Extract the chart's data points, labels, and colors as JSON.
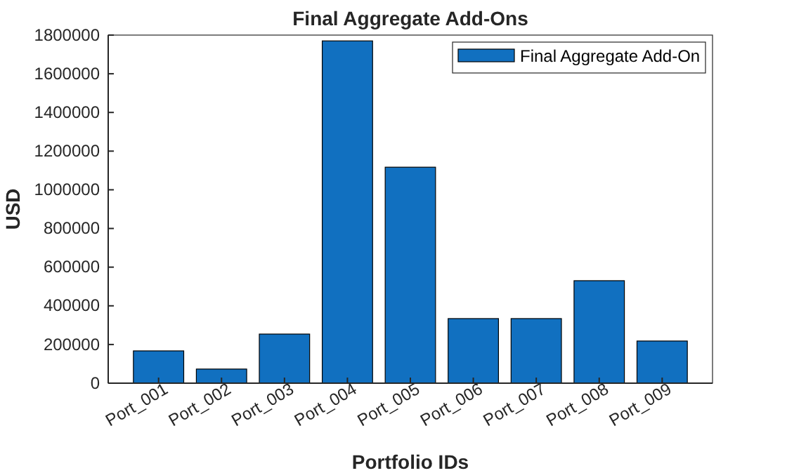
{
  "chart_data": {
    "type": "bar",
    "title": "Final Aggregate Add-Ons",
    "xlabel": "Portfolio IDs",
    "ylabel": "USD",
    "categories": [
      "Port_001",
      "Port_002",
      "Port_003",
      "Port_004",
      "Port_005",
      "Port_006",
      "Port_007",
      "Port_008",
      "Port_009"
    ],
    "series": [
      {
        "name": "Final Aggregate Add-On",
        "color": "#1170c0",
        "values": [
          167000,
          73000,
          254000,
          1770000,
          1117000,
          334000,
          334000,
          530000,
          218000
        ]
      }
    ],
    "ylim": [
      0,
      1800000
    ],
    "yticks": [
      0,
      200000,
      400000,
      600000,
      800000,
      1000000,
      1200000,
      1400000,
      1600000,
      1800000
    ],
    "legend": "top right",
    "grid": false
  }
}
